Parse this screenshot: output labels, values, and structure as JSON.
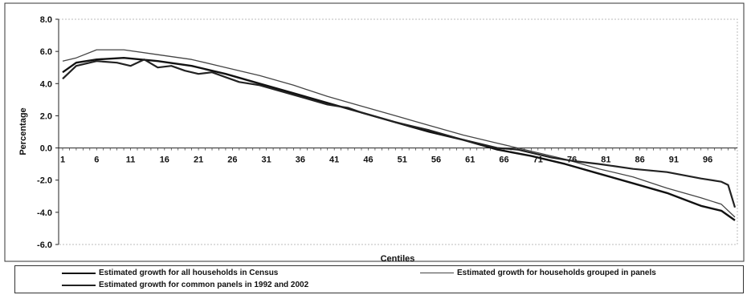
{
  "chart_data": {
    "type": "line",
    "title": "",
    "xlabel": "Centiles",
    "ylabel": "Percentage",
    "ylim": [
      -6.0,
      8.0
    ],
    "yticks": [
      "8.0",
      "6.0",
      "4.0",
      "2.0",
      "0.0",
      "-2.0",
      "-4.0",
      "-6.0"
    ],
    "ytick_values": [
      8,
      6,
      4,
      2,
      0,
      -2,
      -4,
      -6
    ],
    "xticks": [
      "1",
      "6",
      "11",
      "16",
      "21",
      "26",
      "31",
      "36",
      "41",
      "46",
      "51",
      "56",
      "61",
      "66",
      "71",
      "76",
      "81",
      "86",
      "91",
      "96"
    ],
    "grid": false,
    "legend_position": "bottom",
    "colors": {
      "census": "#111111",
      "panels": "#444444",
      "common": "#222222"
    },
    "series": [
      {
        "name": "Estimated growth for all households in Census",
        "x": [
          1,
          3,
          6,
          10,
          15,
          20,
          25,
          30,
          35,
          40,
          45,
          50,
          55,
          60,
          65,
          70,
          75,
          80,
          85,
          90,
          95,
          98,
          100
        ],
        "values": [
          4.7,
          5.3,
          5.5,
          5.6,
          5.4,
          5.1,
          4.6,
          4.0,
          3.4,
          2.8,
          2.2,
          1.6,
          1.0,
          0.5,
          -0.1,
          -0.5,
          -1.0,
          -1.6,
          -2.2,
          -2.8,
          -3.6,
          -3.9,
          -4.5
        ]
      },
      {
        "name": "Estimated growth for households grouped in panels",
        "x": [
          1,
          3,
          6,
          10,
          15,
          20,
          25,
          30,
          35,
          40,
          45,
          50,
          55,
          60,
          65,
          70,
          75,
          80,
          85,
          90,
          95,
          98,
          100
        ],
        "values": [
          5.4,
          5.6,
          6.1,
          6.1,
          5.8,
          5.5,
          5.0,
          4.5,
          3.9,
          3.2,
          2.6,
          2.0,
          1.4,
          0.8,
          0.3,
          -0.2,
          -0.7,
          -1.3,
          -1.8,
          -2.5,
          -3.1,
          -3.5,
          -4.3
        ]
      },
      {
        "name": "Estimated growth for common panels in 1992 and 2002",
        "x": [
          1,
          3,
          6,
          9,
          11,
          13,
          15,
          17,
          19,
          21,
          23,
          25,
          27,
          30,
          35,
          40,
          43,
          45,
          50,
          55,
          60,
          65,
          68,
          70,
          73,
          76,
          80,
          85,
          90,
          95,
          98,
          99,
          100
        ],
        "values": [
          4.3,
          5.1,
          5.4,
          5.3,
          5.1,
          5.5,
          5.0,
          5.1,
          4.8,
          4.6,
          4.7,
          4.4,
          4.1,
          3.9,
          3.3,
          2.7,
          2.5,
          2.2,
          1.6,
          1.1,
          0.5,
          0.0,
          -0.1,
          -0.3,
          -0.6,
          -0.8,
          -1.0,
          -1.3,
          -1.5,
          -1.9,
          -2.1,
          -2.3,
          -3.7
        ]
      }
    ]
  },
  "legend": {
    "items": [
      "Estimated growth for all households in Census",
      "Estimated growth for households grouped in panels",
      "Estimated growth for common panels in 1992 and 2002"
    ]
  }
}
